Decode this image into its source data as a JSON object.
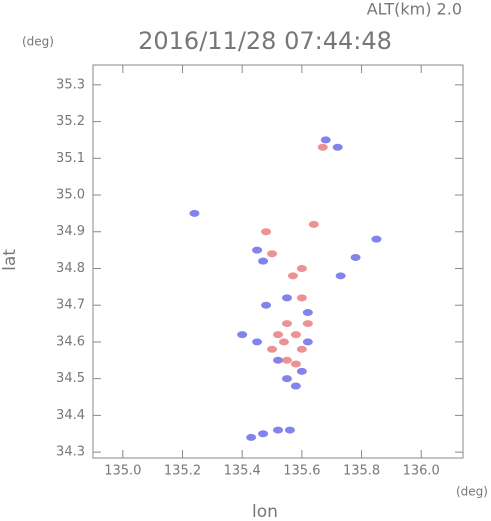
{
  "chart_data": {
    "type": "scatter",
    "title": "2016/11/28 07:44:48",
    "subtitle": "ALT(km) 2.0",
    "x_label": "lon",
    "y_label": "lat",
    "x_unit": "(deg)",
    "y_unit": "(deg)",
    "xlim": [
      134.9,
      136.14
    ],
    "ylim": [
      34.284,
      35.354
    ],
    "xticks": [
      {
        "value": 135,
        "label": "135.0"
      },
      {
        "value": 135.2,
        "label": "135.2"
      },
      {
        "value": 135.4,
        "label": "135.4"
      },
      {
        "value": 135.6,
        "label": "135.6"
      },
      {
        "value": 135.8,
        "label": "135.8"
      },
      {
        "value": 136,
        "label": "136.0"
      }
    ],
    "yticks": [
      34.3,
      34.4,
      34.5,
      34.6,
      34.7,
      34.8,
      34.9,
      {
        "value": 35,
        "label": "35.0"
      },
      35.1,
      35.2,
      35.3
    ],
    "series": [
      {
        "color": "#5a5ae6",
        "x": [
          135.24,
          135.68,
          135.72,
          135.45,
          135.47,
          135.85,
          135.78,
          135.73,
          135.4,
          135.48,
          135.55,
          135.62,
          135.45,
          135.52,
          135.55,
          135.6,
          135.58,
          135.62,
          135.47,
          135.52,
          135.56,
          135.43
        ],
        "y": [
          34.95,
          35.15,
          35.13,
          34.85,
          34.82,
          34.88,
          34.83,
          34.78,
          34.62,
          34.7,
          34.72,
          34.68,
          34.6,
          34.55,
          34.5,
          34.52,
          34.48,
          34.6,
          34.35,
          34.36,
          34.36,
          34.34
        ]
      },
      {
        "color": "#e66e6e",
        "x": [
          135.64,
          135.5,
          135.57,
          135.6,
          135.55,
          135.58,
          135.52,
          135.6,
          135.5,
          135.55,
          135.58,
          135.6,
          135.67,
          135.48,
          135.54,
          135.62
        ],
        "y": [
          34.92,
          34.84,
          34.78,
          34.8,
          34.65,
          34.62,
          34.62,
          34.58,
          34.58,
          34.55,
          34.54,
          34.72,
          35.13,
          34.9,
          34.6,
          34.65
        ]
      }
    ]
  }
}
